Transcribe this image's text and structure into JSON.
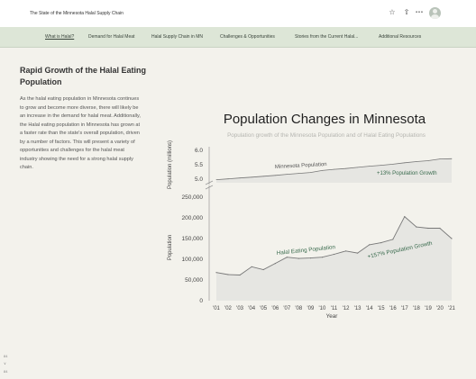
{
  "header": {
    "site_title": "The State of the Minnesota Halal Supply Chain",
    "icons": [
      "star-icon",
      "share-icon",
      "more-icon",
      "avatar"
    ],
    "more_label": "•••"
  },
  "nav": {
    "items": [
      {
        "label": "What is Halal?",
        "active": true
      },
      {
        "label": "Demand for Halal Meat",
        "active": false
      },
      {
        "label": "Halal Supply Chain in MN",
        "active": false
      },
      {
        "label": "Challenges & Opportunities",
        "active": false
      },
      {
        "label": "Stories from the Current Halal...",
        "active": false
      },
      {
        "label": "Additional Resources",
        "active": false
      }
    ]
  },
  "sidebar": {
    "heading": "Rapid Growth of the Halal Eating Population",
    "body": "As the halal eating population in Minnesota continues to grow and become more diverse, there will likely be an increase in the demand for halal meat. Additionally, the Halal eating population in Minnesota has grown at a faster rate than the state's overall population, driven by a number of factors. This will present a variety of opportunities and challenges for the halal meat industry showing the need for a strong halal supply chain.",
    "page_marks": [
      "84",
      "∨",
      "84"
    ]
  },
  "chart_data": {
    "type": "line",
    "title": "Population Changes in Minnesota",
    "subtitle": "Population growth of the Minnesota Population and of Halal Eating Populations",
    "xlabel": "Year",
    "categories": [
      "'01",
      "'02",
      "'03",
      "'04",
      "'05",
      "'06",
      "'07",
      "'08",
      "'09",
      "'10",
      "'11",
      "'12",
      "'13",
      "'14",
      "'15",
      "'16",
      "'17",
      "'18",
      "'19",
      "'20",
      "'21"
    ],
    "top_panel": {
      "ylabel": "Population (millions)",
      "ylim": [
        5.0,
        6.0
      ],
      "ticks": [
        "6.0",
        "5.5",
        "5.0"
      ],
      "series": [
        {
          "name": "Minnesota Population",
          "annotation": "+13% Population Growth",
          "values": [
            4.98,
            5.01,
            5.04,
            5.07,
            5.1,
            5.13,
            5.17,
            5.2,
            5.23,
            5.3,
            5.34,
            5.37,
            5.41,
            5.45,
            5.48,
            5.52,
            5.57,
            5.61,
            5.64,
            5.7,
            5.71
          ]
        }
      ]
    },
    "bottom_panel": {
      "ylabel": "Population",
      "ylim": [
        0,
        250000
      ],
      "ticks": [
        "250,000",
        "200,000",
        "150,000",
        "100,000",
        "50,000",
        "0"
      ],
      "series": [
        {
          "name": "Halal Eating Population",
          "annotation": "+157% Population Growth",
          "values": [
            68000,
            63000,
            62000,
            82000,
            75000,
            90000,
            105000,
            102000,
            103000,
            105000,
            112000,
            120000,
            115000,
            135000,
            140000,
            148000,
            203000,
            178000,
            175000,
            175000,
            150000
          ]
        }
      ]
    },
    "colors": {
      "line": "#777777",
      "fill": "#e6e6e2",
      "annotation": "#3a6b4e",
      "title": "#222222"
    }
  }
}
